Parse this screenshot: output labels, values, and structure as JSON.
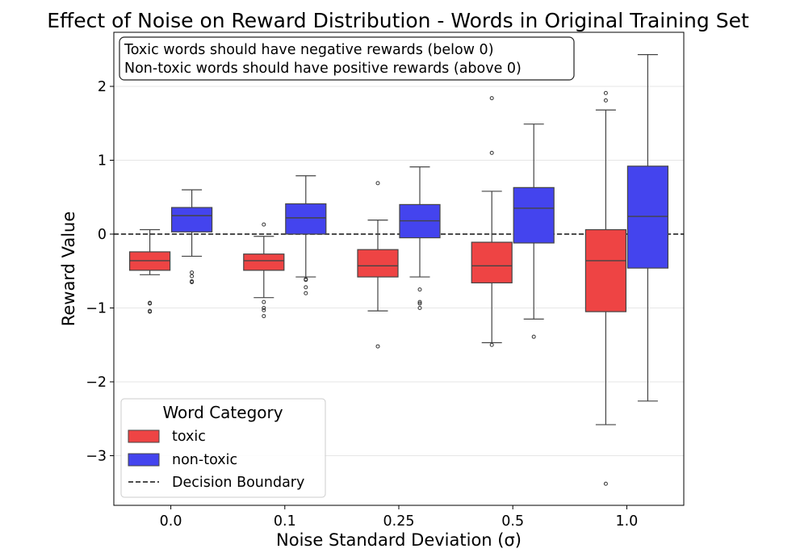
{
  "chart_data": {
    "type": "box",
    "title": "Effect of Noise on Reward Distribution - Words in Original Training Set",
    "xlabel": "Noise Standard Deviation (σ)",
    "ylabel": "Reward Value",
    "categories": [
      "0.0",
      "0.1",
      "0.25",
      "0.5",
      "1.0"
    ],
    "ylim": [
      -3.7,
      2.75
    ],
    "yticks": [
      2,
      1,
      0,
      -1,
      -2,
      -3
    ],
    "ytick_labels": [
      "2",
      "1",
      "0",
      "−1",
      "−2",
      "−3"
    ],
    "grid": "y",
    "reference_line": {
      "y": 0,
      "label": "Decision Boundary",
      "style": "dashed"
    },
    "annotation": {
      "line1": "Toxic words should have negative rewards (below 0)",
      "line2": "Non-toxic words should have positive rewards (above 0)"
    },
    "legend": {
      "title": "Word Category",
      "position": "lower-left",
      "entries": [
        "toxic",
        "non-toxic",
        "Decision Boundary"
      ]
    },
    "colors": {
      "toxic": "#ee4444",
      "non-toxic": "#4444ee",
      "line": "#444444"
    },
    "series": [
      {
        "name": "toxic",
        "boxes": [
          {
            "whislo": -0.55,
            "q1": -0.49,
            "med": -0.36,
            "q3": -0.24,
            "whishi": 0.06,
            "fliers": [
              -0.93,
              -0.94,
              -1.04,
              -1.05
            ]
          },
          {
            "whislo": -0.86,
            "q1": -0.49,
            "med": -0.36,
            "q3": -0.27,
            "whishi": -0.03,
            "fliers": [
              0.13,
              -0.92,
              -1.0,
              -1.03,
              -1.11
            ]
          },
          {
            "whislo": -1.04,
            "q1": -0.58,
            "med": -0.43,
            "q3": -0.21,
            "whishi": 0.19,
            "fliers": [
              0.69,
              -1.52
            ]
          },
          {
            "whislo": -1.47,
            "q1": -0.66,
            "med": -0.43,
            "q3": -0.11,
            "whishi": 0.58,
            "fliers": [
              1.84,
              1.1,
              -1.5
            ]
          },
          {
            "whislo": -2.58,
            "q1": -1.05,
            "med": -0.36,
            "q3": 0.06,
            "whishi": 1.68,
            "fliers": [
              1.91,
              1.81,
              -3.38
            ]
          }
        ]
      },
      {
        "name": "non-toxic",
        "boxes": [
          {
            "whislo": -0.3,
            "q1": 0.03,
            "med": 0.25,
            "q3": 0.36,
            "whishi": 0.6,
            "fliers": [
              -0.52,
              -0.57,
              -0.64,
              -0.65
            ]
          },
          {
            "whislo": -0.58,
            "q1": 0.0,
            "med": 0.22,
            "q3": 0.41,
            "whishi": 0.79,
            "fliers": [
              -0.61,
              -0.62,
              -0.72,
              -0.8
            ]
          },
          {
            "whislo": -0.58,
            "q1": -0.05,
            "med": 0.18,
            "q3": 0.4,
            "whishi": 0.91,
            "fliers": [
              -0.75,
              -0.92,
              -0.94,
              -1.0
            ]
          },
          {
            "whislo": -1.15,
            "q1": -0.12,
            "med": 0.35,
            "q3": 0.63,
            "whishi": 1.49,
            "fliers": [
              -1.39
            ]
          },
          {
            "whislo": -2.26,
            "q1": -0.46,
            "med": 0.24,
            "q3": 0.92,
            "whishi": 2.43,
            "fliers": []
          }
        ]
      }
    ]
  }
}
